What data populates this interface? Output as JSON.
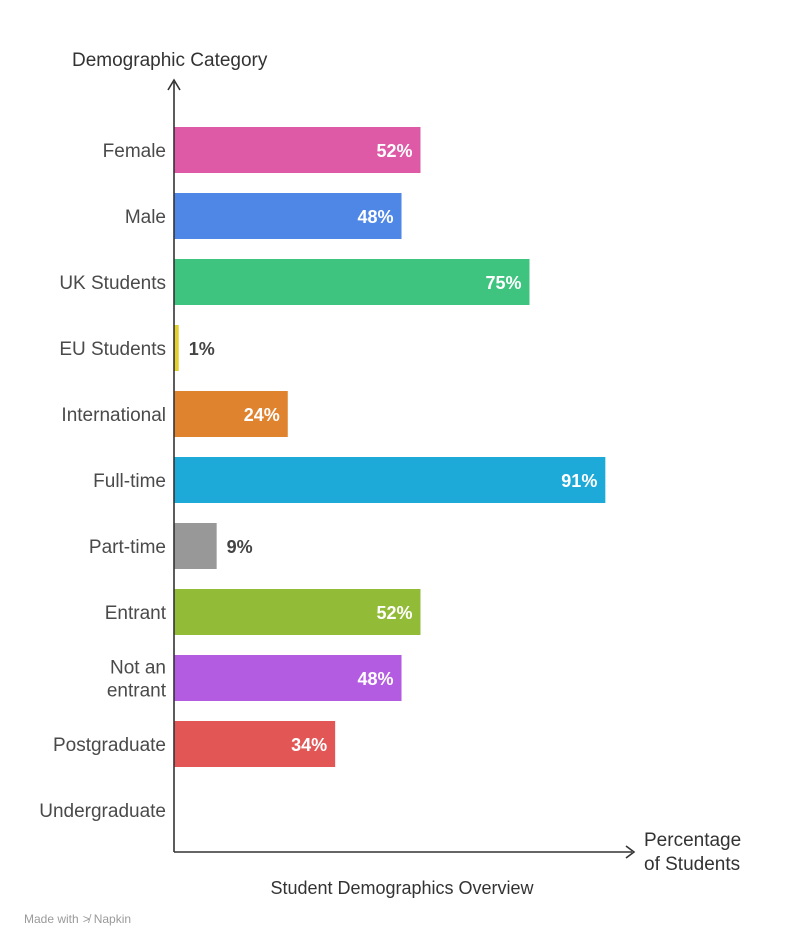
{
  "chart_data": {
    "type": "bar",
    "orientation": "horizontal",
    "title": "Student Demographics Overview",
    "ylabel": "Demographic Category",
    "xlabel": "Percentage of Students",
    "xlim": [
      0,
      100
    ],
    "grid": false,
    "categories": [
      "Female",
      "Male",
      "UK Students",
      "EU Students",
      "International",
      "Full-time",
      "Part-time",
      "Entrant",
      "Not an entrant",
      "Postgraduate",
      "Undergraduate"
    ],
    "values": [
      52,
      48,
      75,
      1,
      24,
      91,
      9,
      52,
      48,
      34,
      null
    ],
    "value_labels": [
      "52%",
      "48%",
      "75%",
      "1%",
      "24%",
      "91%",
      "9%",
      "52%",
      "48%",
      "34%",
      ""
    ],
    "colors": [
      "#de5aa6",
      "#4f87e6",
      "#3ec47f",
      "#e3cf2f",
      "#e0832f",
      "#1eaad9",
      "#989898",
      "#92bc38",
      "#b35ce2",
      "#e25656",
      "#cccccc"
    ]
  },
  "footer": {
    "made_with": "Made with",
    "brand": "Napkin",
    "brand_icon": "napkin-logo-icon"
  }
}
